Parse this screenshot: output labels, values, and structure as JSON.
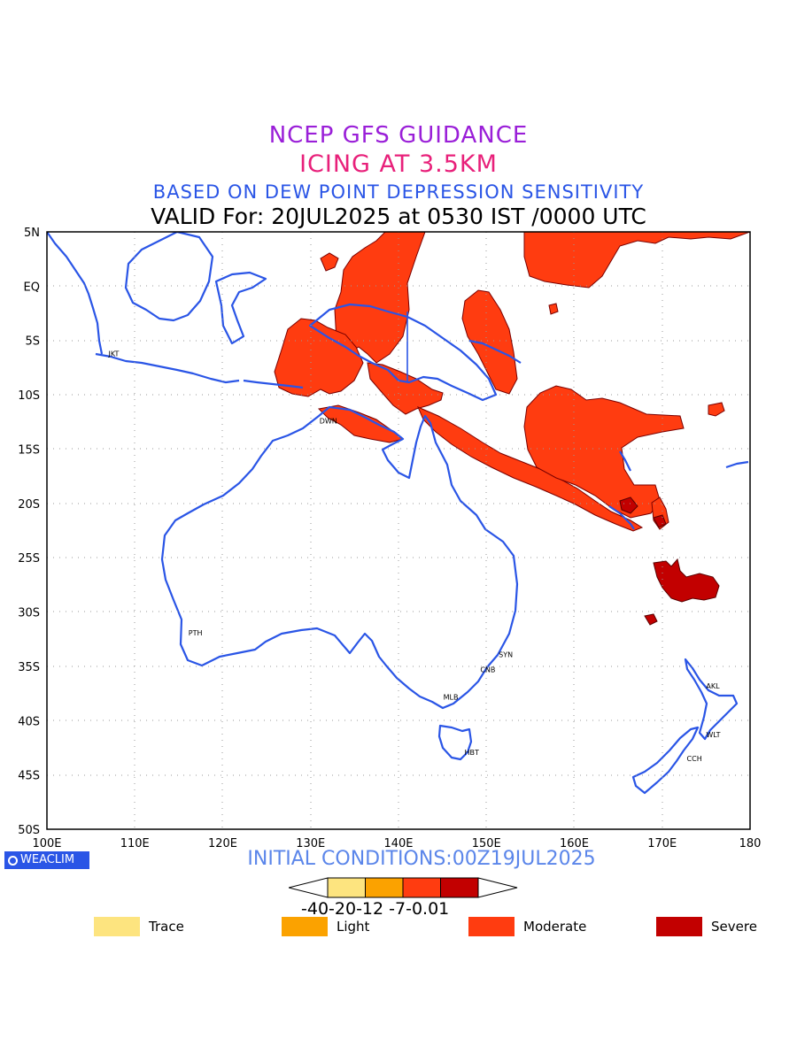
{
  "titles": {
    "line1": "NCEP GFS GUIDANCE",
    "line2": "ICING AT 3.5KM",
    "line3": "BASED ON DEW POINT DEPRESSION SENSITIVITY",
    "line4": "VALID For: 20JUL2025 at 0530 IST /0000 UTC"
  },
  "axes": {
    "lat_labels": [
      "5N",
      "EQ",
      "5S",
      "10S",
      "15S",
      "20S",
      "25S",
      "30S",
      "35S",
      "40S",
      "45S",
      "50S"
    ],
    "lon_labels": [
      "100E",
      "110E",
      "120E",
      "130E",
      "140E",
      "150E",
      "160E",
      "170E",
      "180"
    ],
    "lon_range": [
      100,
      180
    ],
    "lat_range": [
      -50,
      5
    ],
    "grid": "dotted"
  },
  "cities": [
    {
      "code": "JKT",
      "lon": 106.8,
      "lat": -6.2
    },
    {
      "code": "DWN",
      "lon": 130.8,
      "lat": -12.4
    },
    {
      "code": "PTH",
      "lon": 115.9,
      "lat": -31.9
    },
    {
      "code": "SYN",
      "lon": 151.2,
      "lat": -33.9
    },
    {
      "code": "CNB",
      "lon": 149.1,
      "lat": -35.3
    },
    {
      "code": "MLB",
      "lon": 144.9,
      "lat": -37.8
    },
    {
      "code": "HBT",
      "lon": 147.3,
      "lat": -42.9
    },
    {
      "code": "AKL",
      "lon": 174.8,
      "lat": -36.8
    },
    {
      "code": "WLT",
      "lon": 174.8,
      "lat": -41.3
    },
    {
      "code": "CCH",
      "lon": 172.6,
      "lat": -43.5
    }
  ],
  "brand": "WEACLIM",
  "initial_conditions": "INITIAL CONDITIONS:00Z19JUL2025",
  "colorbar": {
    "labels": "-40-20-12 -7-0.01",
    "colors": [
      "#fde47f",
      "#fba200",
      "#ff3c10",
      "#c20000"
    ]
  },
  "legend": [
    {
      "label": "Trace",
      "color": "#fde47f"
    },
    {
      "label": "Light",
      "color": "#fba200"
    },
    {
      "label": "Moderate",
      "color": "#ff3c10"
    },
    {
      "label": "Severe",
      "color": "#c20000"
    }
  ],
  "colors": {
    "coast": "#2a55e6",
    "moderate": "#ff3c10",
    "severe": "#c20000"
  }
}
